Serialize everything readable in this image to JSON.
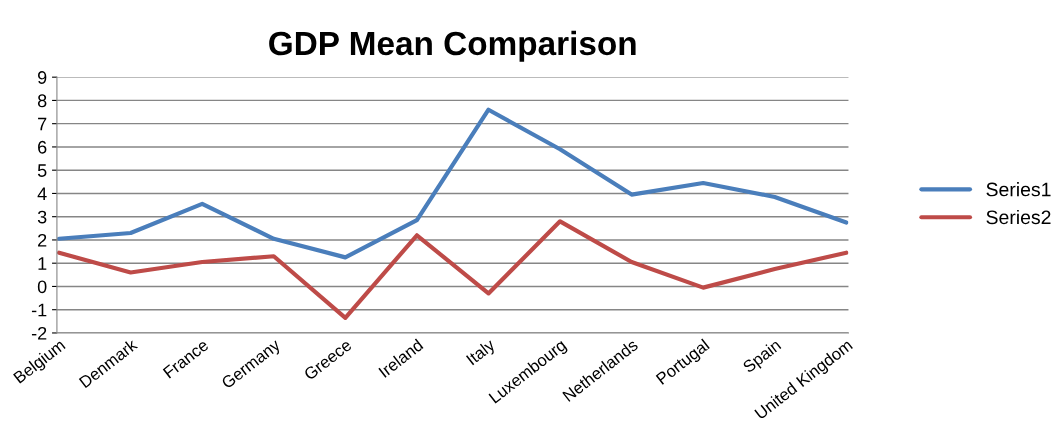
{
  "chart_data": {
    "type": "line",
    "title": "GDP Mean Comparison",
    "categories": [
      "Belgium",
      "Denmark",
      "France",
      "Germany",
      "Greece",
      "Ireland",
      "Italy",
      "Luxembourg",
      "Netherlands",
      "Portugal",
      "Spain",
      "United Kingdom"
    ],
    "series": [
      {
        "name": "Series1",
        "color": "#4a7ebb",
        "values": [
          2.05,
          2.3,
          3.55,
          2.05,
          1.25,
          2.85,
          7.6,
          5.9,
          3.95,
          4.45,
          3.85,
          2.75
        ]
      },
      {
        "name": "Series2",
        "color": "#be4b48",
        "values": [
          1.45,
          0.6,
          1.05,
          1.3,
          -1.35,
          2.2,
          -0.3,
          2.8,
          1.05,
          -0.05,
          0.75,
          1.45
        ]
      }
    ],
    "ylim": [
      -2,
      9
    ],
    "yticks": [
      -2,
      -1,
      0,
      1,
      2,
      3,
      4,
      5,
      6,
      7,
      8,
      9
    ],
    "grid": "y",
    "legend": "right",
    "marker": "none",
    "line_style": "solid"
  }
}
